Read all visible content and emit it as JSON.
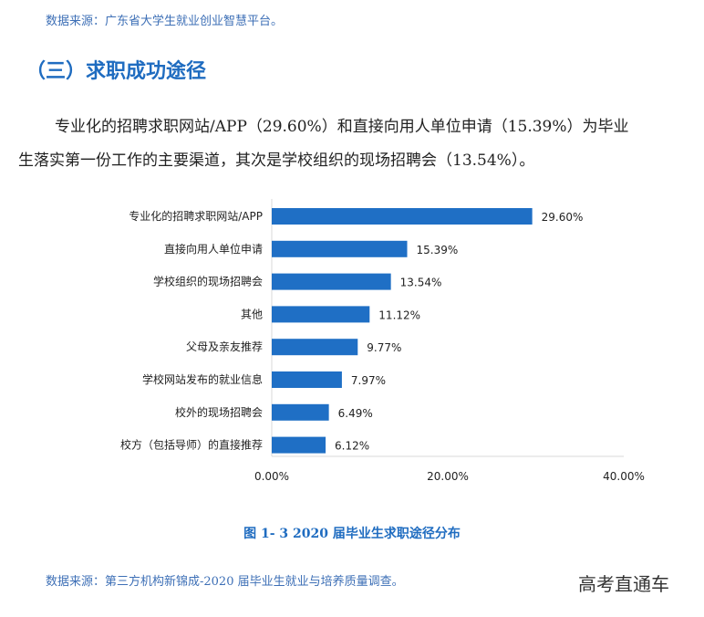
{
  "source_top": "数据来源：广东省大学生就业创业智慧平台。",
  "section_heading": "（三）求职成功途径",
  "paragraph_line1": "专业化的招聘求职网站/APP（29.60%）和直接向用人单位申请（15.39%）为毕业",
  "paragraph_line2": "生落实第一份工作的主要渠道，其次是学校组织的现场招聘会（13.54%）。",
  "chart_data": {
    "type": "bar",
    "orientation": "horizontal",
    "categories": [
      "专业化的招聘求职网站/APP",
      "直接向用人单位申请",
      "学校组织的现场招聘会",
      "其他",
      "父母及亲友推荐",
      "学校网站发布的就业信息",
      "校外的现场招聘会",
      "校方（包括导师）的直接推荐"
    ],
    "values": [
      29.6,
      15.39,
      13.54,
      11.12,
      9.77,
      7.97,
      6.49,
      6.12
    ],
    "value_labels": [
      "29.60%",
      "15.39%",
      "13.54%",
      "11.12%",
      "9.77%",
      "7.97%",
      "6.49%",
      "6.12%"
    ],
    "xlim": [
      0,
      40
    ],
    "xticks": [
      "0.00%",
      "20.00%",
      "40.00%"
    ],
    "grid": false,
    "bar_color": "#1f6fc5",
    "title": "图 1- 3    2020 届毕业生求职途径分布"
  },
  "source_bottom": "数据来源：第三方机构新锦成-2020 届毕业生就业与培养质量调查。",
  "watermark": "高考直通车"
}
